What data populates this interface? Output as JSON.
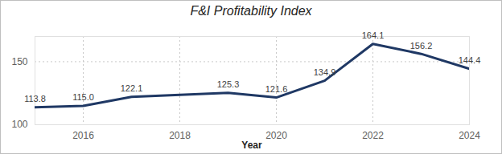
{
  "chart_data": {
    "type": "line",
    "title": "F&I Profitability Index",
    "x": [
      2015,
      2016,
      2017,
      2018,
      2019,
      2020,
      2021,
      2022,
      2023,
      2024
    ],
    "values": [
      113.8,
      115.0,
      122.1,
      123.7,
      125.3,
      121.6,
      134.9,
      164.1,
      156.2,
      144.4
    ],
    "value_labels": [
      "113.8",
      "115.0",
      "122.1",
      null,
      "125.3",
      "121.6",
      "134.9",
      "164.1",
      "156.2",
      "144.4"
    ],
    "data_labels": true,
    "color": "#1f3864",
    "x_label": "Year",
    "xlim": [
      2015,
      2024
    ],
    "xticks": [
      2016,
      2018,
      2020,
      2022,
      2024
    ],
    "ylim": [
      100,
      170
    ],
    "yticks": [
      100,
      150
    ],
    "grid": true
  }
}
